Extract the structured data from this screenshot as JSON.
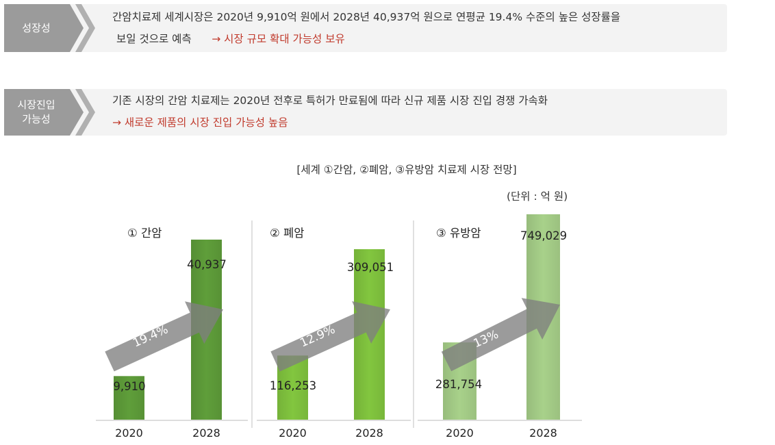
{
  "growth": {
    "tag": "성장성",
    "line1": "간암치료제 세계시장은 2020년 9,910억 원에서 2028년 40,937억 원으로 연평균 19.4% 수준의  높은 성장률을",
    "line2": "보일 것으로 예측",
    "highlight": "→ 시장 규모 확대 가능성 보유"
  },
  "entry": {
    "tag": "시장진입\n가능성",
    "line1": "기존 시장의 간암 치료제는 2020년 전후로 특허가 만료됨에 따라 신규 제품 시장 진입 경쟁 가속화",
    "highlight": "→ 새로운 제품의 시장 진입 가능성 높음"
  },
  "colors": {
    "tag_gray": "#9b9b9b",
    "highlight_red": "#c0392b",
    "arrow_gray": "#7f7f7f",
    "divider": "#dddddd"
  },
  "chart_header": {
    "title": "[세계 ①간암, ②폐암, ③유방암 치료제 시장 전망]",
    "unit": "(단위 : 억 원)"
  },
  "chart_data": [
    {
      "type": "bar",
      "title": "① 간암",
      "categories": [
        "2020",
        "2028"
      ],
      "values": [
        9910,
        40937
      ],
      "value_labels": [
        "9,910",
        "40,937"
      ],
      "growth_label": "19.4%",
      "colors": [
        "#5f9e3a",
        "#5f9e3a"
      ]
    },
    {
      "type": "bar",
      "title": "② 폐암",
      "categories": [
        "2020",
        "2028"
      ],
      "values": [
        116253,
        309051
      ],
      "value_labels": [
        "116,253",
        "309,051"
      ],
      "growth_label": "12.9%",
      "colors": [
        "#82c63f",
        "#82c63f"
      ]
    },
    {
      "type": "bar",
      "title": "③ 유방암",
      "categories": [
        "2020",
        "2028"
      ],
      "values": [
        281754,
        749029
      ],
      "value_labels": [
        "281,754",
        "749,029"
      ],
      "growth_label": "13%",
      "colors": [
        "#a8d18a",
        "#a8d18a"
      ]
    }
  ]
}
